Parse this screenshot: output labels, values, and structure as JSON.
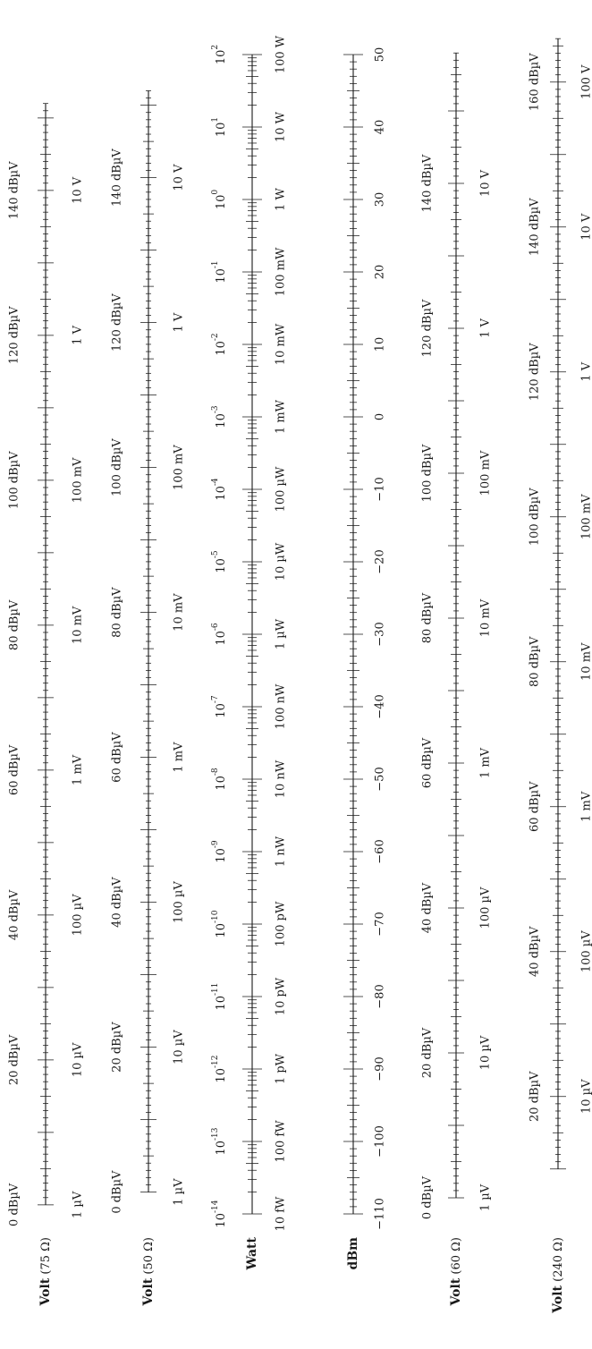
{
  "title": "",
  "scales": [
    {
      "id": "volt-75",
      "label_bold": "Volt",
      "label_suffix": " (75 Ω)",
      "axis": "voltage-dbuv",
      "start_dbuv": 0,
      "end_dbuv": 152,
      "minor_step_db": 1,
      "mid_step_db": 5,
      "major_step_db": 10,
      "dbuv_labels": [
        "0 dBµV",
        "20 dBµV",
        "40 dBµV",
        "60 dBµV",
        "80 dBµV",
        "100 dBµV",
        "120 dBµV",
        "140 dBµV"
      ],
      "dbuv_label_values": [
        0,
        20,
        40,
        60,
        80,
        100,
        120,
        140
      ],
      "volt_labels": [
        "1 µV",
        "10 µV",
        "100 µV",
        "1 mV",
        "10 mV",
        "100 mV",
        "1 V",
        "10 V"
      ],
      "volt_label_values": [
        0,
        20,
        40,
        60,
        80,
        100,
        120,
        140
      ]
    },
    {
      "id": "volt-50",
      "label_bold": "Volt",
      "label_suffix": " (50 Ω)",
      "axis": "voltage-dbuv",
      "start_dbuv": 0,
      "end_dbuv": 152,
      "minor_step_db": 1,
      "mid_step_db": 5,
      "major_step_db": 10,
      "dbuv_labels": [
        "0 dBµV",
        "20 dBµV",
        "40 dBµV",
        "60 dBµV",
        "80 dBµV",
        "100 dBµV",
        "120 dBµV",
        "140 dBµV"
      ],
      "dbuv_label_values": [
        0,
        20,
        40,
        60,
        80,
        100,
        120,
        140
      ],
      "volt_labels": [
        "1 µV",
        "10 µV",
        "100 µV",
        "1 mV",
        "10 mV",
        "100 mV",
        "1 V",
        "10 V"
      ],
      "volt_label_values": [
        0,
        20,
        40,
        60,
        80,
        100,
        120,
        140
      ]
    },
    {
      "id": "watt",
      "label_bold": "Watt",
      "label_suffix": "",
      "axis": "power-log",
      "start_exp": -14,
      "end_exp": 2,
      "exp_labels": [
        -14,
        -13,
        -12,
        -11,
        -10,
        -9,
        -8,
        -7,
        -6,
        -5,
        -4,
        -3,
        -2,
        -1,
        0,
        1,
        2
      ],
      "unit_labels": [
        "10 fW",
        "100 fW",
        "1 pW",
        "10 pW",
        "100 pW",
        "1 nW",
        "10 nW",
        "100 nW",
        "1 µW",
        "10 µW",
        "100 µW",
        "1 mW",
        "10 mW",
        "100 mW",
        "1 W",
        "10 W",
        "100 W"
      ]
    },
    {
      "id": "dbm",
      "label_bold": "dBm",
      "label_suffix": "",
      "axis": "dbm",
      "start_dbm": -110,
      "end_dbm": 50,
      "labels": [
        "−110",
        "−100",
        "−90",
        "−80",
        "−70",
        "−60",
        "−50",
        "−40",
        "−30",
        "−20",
        "−10",
        "0",
        "10",
        "20",
        "30",
        "40",
        "50"
      ]
    },
    {
      "id": "volt-60",
      "label_bold": "Volt",
      "label_suffix": " (60 Ω)",
      "axis": "voltage-dbuv",
      "start_dbuv": 0,
      "end_dbuv": 158,
      "minor_step_db": 1,
      "mid_step_db": 5,
      "major_step_db": 10,
      "dbuv_labels": [
        "0 dBµV",
        "20 dBµV",
        "40 dBµV",
        "60 dBµV",
        "80 dBµV",
        "100 dBµV",
        "120 dBµV",
        "140 dBµV"
      ],
      "dbuv_label_values": [
        0,
        20,
        40,
        60,
        80,
        100,
        120,
        140
      ],
      "volt_labels": [
        "1 µV",
        "10 µV",
        "100 µV",
        "1 mV",
        "10 mV",
        "100 mV",
        "1 V",
        "10 V"
      ],
      "volt_label_values": [
        0,
        20,
        40,
        60,
        80,
        100,
        120,
        140
      ]
    },
    {
      "id": "volt-240",
      "label_bold": "Volt",
      "label_suffix": " (240 Ω)",
      "axis": "voltage-dbuv",
      "start_dbuv": 10,
      "end_dbuv": 166,
      "minor_step_db": 1,
      "mid_step_db": 5,
      "major_step_db": 10,
      "dbuv_labels": [
        "20 dBµV",
        "40 dBµV",
        "60 dBµV",
        "80 dBµV",
        "100 dBµV",
        "120 dBµV",
        "140 dBµV",
        "160 dBµV"
      ],
      "dbuv_label_values": [
        20,
        40,
        60,
        80,
        100,
        120,
        140,
        160
      ],
      "volt_labels": [
        "10 µV",
        "100 µV",
        "1 mV",
        "10 mV",
        "100 mV",
        "1 V",
        "10 V",
        "100 V"
      ],
      "volt_label_values": [
        20,
        40,
        60,
        80,
        100,
        120,
        140,
        160
      ]
    }
  ]
}
